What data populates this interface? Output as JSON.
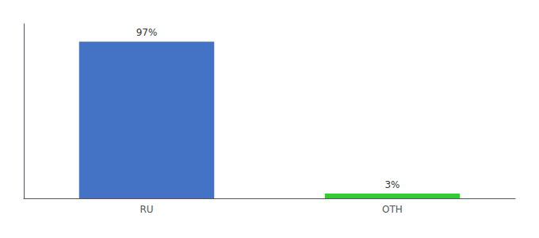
{
  "chart_data": {
    "type": "bar",
    "categories": [
      "RU",
      "OTH"
    ],
    "values": [
      97,
      3
    ],
    "value_labels": [
      "97%",
      "3%"
    ],
    "colors": [
      "#4472c4",
      "#33cc33"
    ],
    "ylim": [
      0,
      108
    ],
    "tick_labels": "x",
    "data_labels": true,
    "grid": false
  }
}
